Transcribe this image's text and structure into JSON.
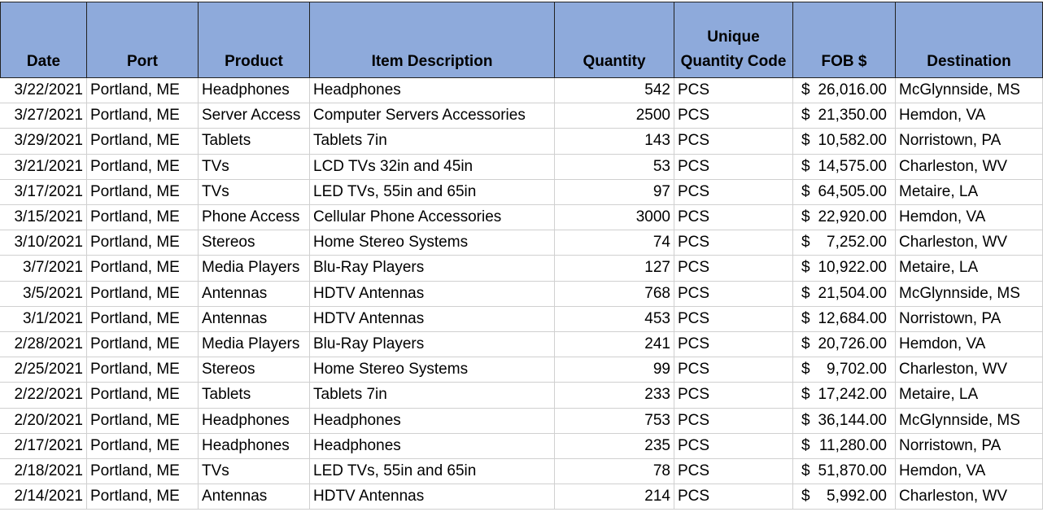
{
  "table": {
    "header": [
      [
        "Date"
      ],
      [
        "Port"
      ],
      [
        "Product"
      ],
      [
        "Item Description"
      ],
      [
        "Quantity"
      ],
      [
        "Unique",
        "Quantity Code"
      ],
      [
        "FOB $"
      ],
      [
        "Destination"
      ]
    ],
    "rows": [
      [
        "3/22/2021",
        "Portland, ME",
        "Headphones",
        "Headphones",
        542,
        "PCS",
        {
          "symbol": "$",
          "amount": "26,016.00"
        },
        "McGlynnside, MS"
      ],
      [
        "3/27/2021",
        "Portland, ME",
        "Server Access",
        "Computer Servers Accessories",
        2500,
        "PCS",
        {
          "symbol": "$",
          "amount": "21,350.00"
        },
        "Hemdon, VA"
      ],
      [
        "3/29/2021",
        "Portland, ME",
        "Tablets",
        "Tablets 7in",
        143,
        "PCS",
        {
          "symbol": "$",
          "amount": "10,582.00"
        },
        "Norristown, PA"
      ],
      [
        "3/21/2021",
        "Portland, ME",
        "TVs",
        "LCD TVs 32in and 45in",
        53,
        "PCS",
        {
          "symbol": "$",
          "amount": "14,575.00"
        },
        "Charleston, WV"
      ],
      [
        "3/17/2021",
        "Portland, ME",
        "TVs",
        "LED TVs, 55in and 65in",
        97,
        "PCS",
        {
          "symbol": "$",
          "amount": "64,505.00"
        },
        "Metaire, LA"
      ],
      [
        "3/15/2021",
        "Portland, ME",
        "Phone Access",
        "Cellular Phone Accessories",
        3000,
        "PCS",
        {
          "symbol": "$",
          "amount": "22,920.00"
        },
        "Hemdon, VA"
      ],
      [
        "3/10/2021",
        "Portland, ME",
        "Stereos",
        "Home Stereo Systems",
        74,
        "PCS",
        {
          "symbol": "$",
          "amount": "7,252.00"
        },
        "Charleston, WV"
      ],
      [
        "3/7/2021",
        "Portland, ME",
        "Media Players",
        "Blu-Ray Players",
        127,
        "PCS",
        {
          "symbol": "$",
          "amount": "10,922.00"
        },
        "Metaire, LA"
      ],
      [
        "3/5/2021",
        "Portland, ME",
        "Antennas",
        "HDTV Antennas",
        768,
        "PCS",
        {
          "symbol": "$",
          "amount": "21,504.00"
        },
        "McGlynnside, MS"
      ],
      [
        "3/1/2021",
        "Portland, ME",
        "Antennas",
        "HDTV Antennas",
        453,
        "PCS",
        {
          "symbol": "$",
          "amount": "12,684.00"
        },
        "Norristown, PA"
      ],
      [
        "2/28/2021",
        "Portland, ME",
        "Media Players",
        "Blu-Ray Players",
        241,
        "PCS",
        {
          "symbol": "$",
          "amount": "20,726.00"
        },
        "Hemdon, VA"
      ],
      [
        "2/25/2021",
        "Portland, ME",
        "Stereos",
        "Home Stereo Systems",
        99,
        "PCS",
        {
          "symbol": "$",
          "amount": "9,702.00"
        },
        "Charleston, WV"
      ],
      [
        "2/22/2021",
        "Portland, ME",
        "Tablets",
        "Tablets 7in",
        233,
        "PCS",
        {
          "symbol": "$",
          "amount": "17,242.00"
        },
        "Metaire, LA"
      ],
      [
        "2/20/2021",
        "Portland, ME",
        "Headphones",
        "Headphones",
        753,
        "PCS",
        {
          "symbol": "$",
          "amount": "36,144.00"
        },
        "McGlynnside, MS"
      ],
      [
        "2/17/2021",
        "Portland, ME",
        "Headphones",
        "Headphones",
        235,
        "PCS",
        {
          "symbol": "$",
          "amount": "11,280.00"
        },
        "Norristown, PA"
      ],
      [
        "2/18/2021",
        "Portland, ME",
        "TVs",
        "LED TVs, 55in and 65in",
        78,
        "PCS",
        {
          "symbol": "$",
          "amount": "51,870.00"
        },
        "Hemdon, VA"
      ],
      [
        "2/14/2021",
        "Portland, ME",
        "Antennas",
        "HDTV Antennas",
        214,
        "PCS",
        {
          "symbol": "$",
          "amount": "5,992.00"
        },
        "Charleston, WV"
      ]
    ]
  }
}
